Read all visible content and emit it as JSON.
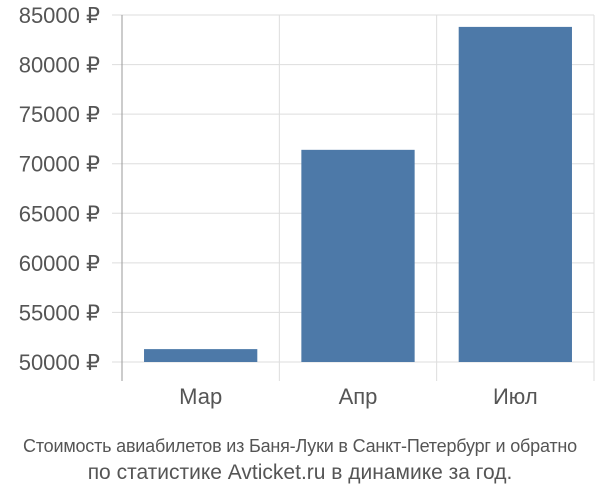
{
  "chart_data": {
    "type": "bar",
    "categories": [
      "Мар",
      "Апр",
      "Июл"
    ],
    "values": [
      51300,
      71400,
      83800
    ],
    "ylim": [
      50000,
      85000
    ],
    "yticks": [
      50000,
      55000,
      60000,
      65000,
      70000,
      75000,
      80000,
      85000
    ],
    "y_tick_labels": [
      "50000 ₽",
      "55000 ₽",
      "60000 ₽",
      "65000 ₽",
      "70000 ₽",
      "75000 ₽",
      "80000 ₽",
      "85000 ₽"
    ],
    "grid": true,
    "bar_color": "#4d79a8",
    "grid_color": "#dddddd",
    "axis_color": "#999999"
  },
  "caption": {
    "line1": "Стоимость авиабилетов из Баня-Луки в Санкт-Петербург и обратно",
    "line2": "по статистике Avticket.ru в динамике за год."
  }
}
